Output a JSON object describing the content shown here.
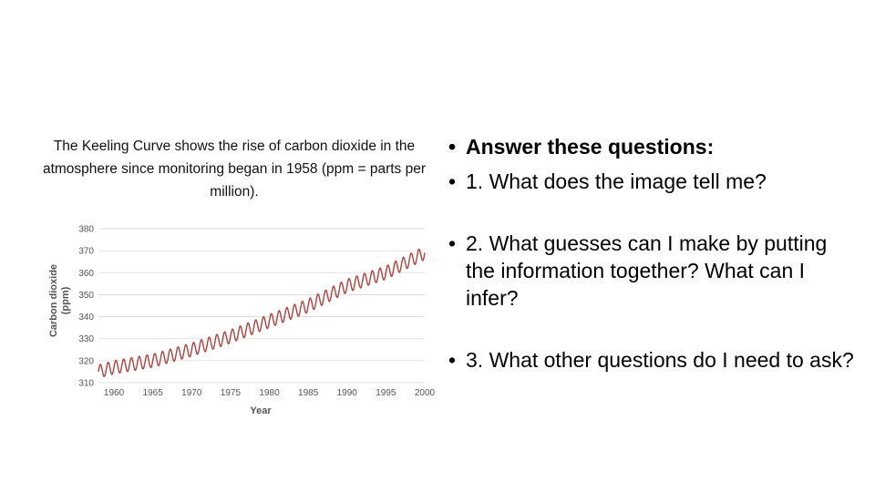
{
  "caption": "The Keeling Curve shows the rise of carbon dioxide in the atmosphere since monitoring began in 1958 (ppm = parts per million).",
  "bullets": [
    "Answer these questions:",
    "1. What does the image tell me?",
    "2. What guesses can I make by putting the information together? What can I infer?",
    "3. What other questions do I need to ask?"
  ],
  "bullet_glyph": "•",
  "chart_data": {
    "type": "line",
    "ylabel_line1": "Carbon dioxide",
    "ylabel_line2": "(ppm)",
    "xlabel": "Year",
    "xlim": [
      1958,
      2000
    ],
    "ylim": [
      310,
      380
    ],
    "xticks": [
      1960,
      1965,
      1970,
      1975,
      1980,
      1985,
      1990,
      1995,
      2000
    ],
    "yticks": [
      310,
      320,
      330,
      340,
      350,
      360,
      370,
      380
    ],
    "grid": "horizontal",
    "line_color": "#b0413e",
    "grid_color": "#d9d9d9",
    "seasonal_amplitude_ppm": 3,
    "series": [
      {
        "x": [
          1958,
          1960,
          1965,
          1970,
          1975,
          1980,
          1985,
          1990,
          1995,
          2000
        ],
        "y": [
          315,
          317,
          320,
          325,
          331,
          338,
          345,
          354,
          360,
          369
        ]
      }
    ]
  }
}
